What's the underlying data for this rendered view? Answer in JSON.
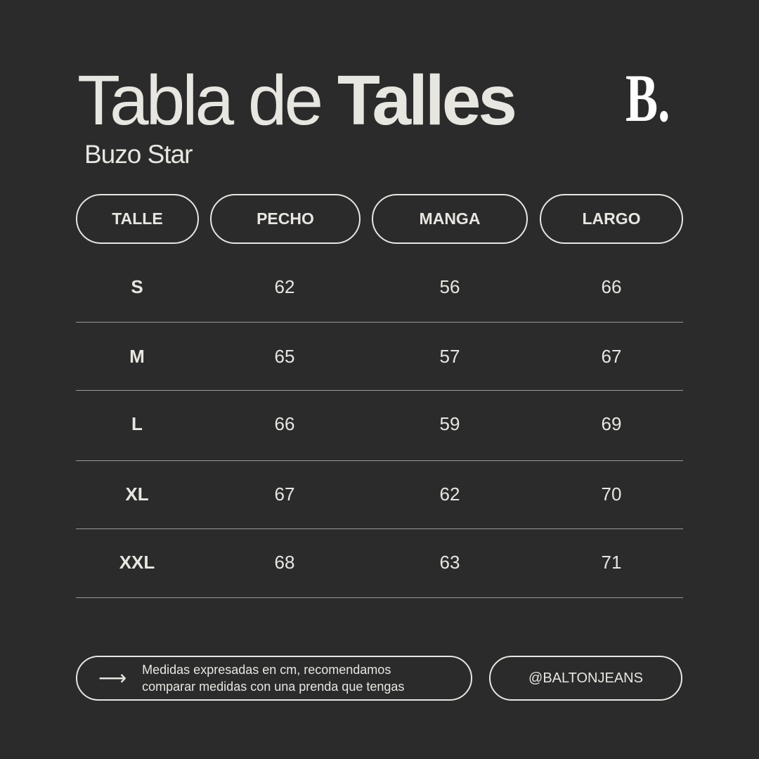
{
  "title": {
    "light": "Tabla de ",
    "bold": "Talles"
  },
  "subtitle": "Buzo Star",
  "logo": "B.",
  "table": {
    "headers": [
      "TALLE",
      "PECHO",
      "MANGA",
      "LARGO"
    ],
    "rows": [
      [
        "S",
        "62",
        "56",
        "66"
      ],
      [
        "M",
        "65",
        "57",
        "67"
      ],
      [
        "L",
        "66",
        "59",
        "69"
      ],
      [
        "XL",
        "67",
        "62",
        "70"
      ],
      [
        "XXL",
        "68",
        "63",
        "71"
      ]
    ]
  },
  "footer": {
    "arrow_icon": "arrow-right-icon",
    "note_line1": "Medidas expresadas en cm, recomendamos",
    "note_line2": "comparar medidas con una prenda que tengas",
    "handle": "@BALTONJEANS"
  },
  "colors": {
    "background": "#2b2b2b",
    "text": "#e8e6e1"
  }
}
